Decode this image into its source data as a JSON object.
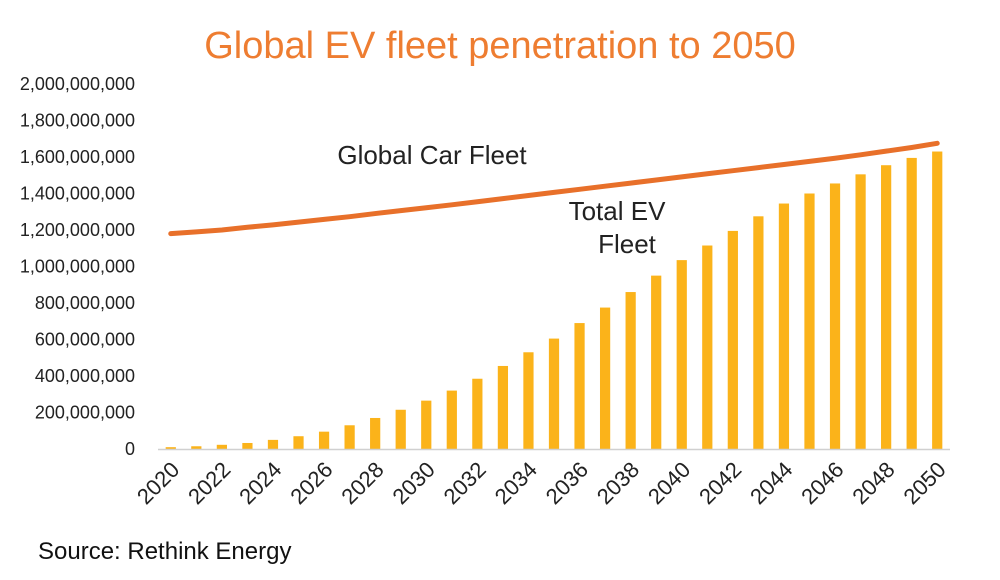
{
  "chart_data": {
    "type": "bar",
    "title": "Global EV fleet penetration to 2050",
    "source": "Source: Rethink Energy",
    "colors": {
      "title": "#ee7d31",
      "bars": "#fbb31a",
      "line": "#e8702a",
      "axis": "#d0d0d0"
    },
    "ylim": [
      0,
      2000000000
    ],
    "y_ticks": [
      "0",
      "200,000,000",
      "400,000,000",
      "600,000,000",
      "800,000,000",
      "1,000,000,000",
      "1,200,000,000",
      "1,400,000,000",
      "1,600,000,000",
      "1,800,000,000",
      "2,000,000,000"
    ],
    "y_tick_values": [
      0,
      200000000,
      400000000,
      600000000,
      800000000,
      1000000000,
      1200000000,
      1400000000,
      1600000000,
      1800000000,
      2000000000
    ],
    "x_tick_labels": [
      "2020",
      "2022",
      "2024",
      "2026",
      "2028",
      "2030",
      "2032",
      "2034",
      "2036",
      "2038",
      "2040",
      "2042",
      "2044",
      "2046",
      "2048",
      "2050"
    ],
    "categories": [
      "2020",
      "2021",
      "2022",
      "2023",
      "2024",
      "2025",
      "2026",
      "2027",
      "2028",
      "2029",
      "2030",
      "2031",
      "2032",
      "2033",
      "2034",
      "2035",
      "2036",
      "2037",
      "2038",
      "2039",
      "2040",
      "2041",
      "2042",
      "2043",
      "2044",
      "2045",
      "2046",
      "2047",
      "2048",
      "2049",
      "2050"
    ],
    "series": [
      {
        "name": "Total EV Fleet",
        "type": "bar",
        "values": [
          10000000,
          15000000,
          23000000,
          33000000,
          50000000,
          70000000,
          95000000,
          130000000,
          170000000,
          215000000,
          265000000,
          320000000,
          385000000,
          455000000,
          530000000,
          605000000,
          690000000,
          775000000,
          860000000,
          950000000,
          1035000000,
          1115000000,
          1195000000,
          1275000000,
          1345000000,
          1400000000,
          1455000000,
          1505000000,
          1555000000,
          1595000000,
          1630000000
        ]
      },
      {
        "name": "Global Car Fleet",
        "type": "line",
        "values": [
          1180000000,
          1190000000,
          1200000000,
          1215000000,
          1228000000,
          1243000000,
          1258000000,
          1273000000,
          1290000000,
          1306000000,
          1322000000,
          1338000000,
          1355000000,
          1372000000,
          1389000000,
          1406000000,
          1423000000,
          1440000000,
          1457000000,
          1474000000,
          1491000000,
          1508000000,
          1525000000,
          1542000000,
          1559000000,
          1576000000,
          1593000000,
          1612000000,
          1632000000,
          1652000000,
          1675000000
        ]
      }
    ],
    "annotations": {
      "car_fleet": "Global Car Fleet",
      "ev_line1": "Total EV",
      "ev_line2": "Fleet"
    }
  }
}
